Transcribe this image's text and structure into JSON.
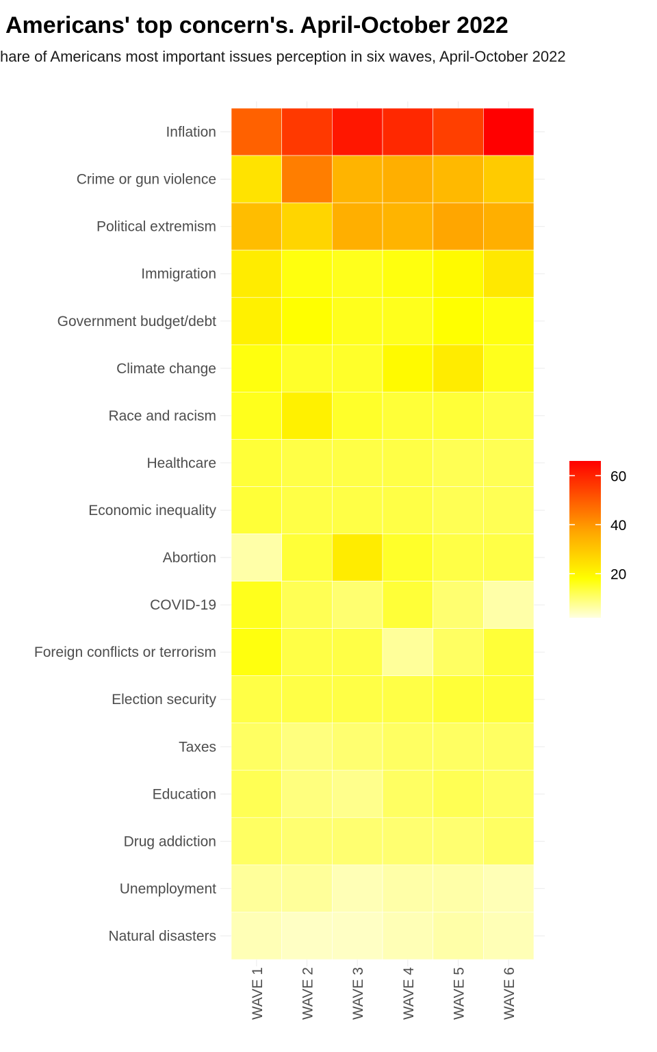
{
  "title": "Americans' top concern's. April-October 2022",
  "subtitle": "hare of Americans most important issues perception in six waves, April-October 2022",
  "chart_data": {
    "type": "heatmap",
    "x": [
      "WAVE 1",
      "WAVE 2",
      "WAVE 3",
      "WAVE 4",
      "WAVE 5",
      "WAVE 6"
    ],
    "y": [
      "Inflation",
      "Crime or gun violence",
      "Political extremism",
      "Immigration",
      "Government budget/debt",
      "Climate change",
      "Race and racism",
      "Healthcare",
      "Economic inequality",
      "Abortion",
      "COVID-19",
      "Foreign conflicts or terrorism",
      "Election security",
      "Taxes",
      "Education",
      "Drug addiction",
      "Unemployment",
      "Natural disasters"
    ],
    "values": [
      [
        49,
        56,
        62,
        59,
        55,
        66
      ],
      [
        24,
        44,
        34,
        35,
        33,
        29
      ],
      [
        32,
        27,
        35,
        34,
        37,
        35
      ],
      [
        22,
        17,
        16,
        17,
        19,
        23
      ],
      [
        21,
        18,
        16,
        16,
        18,
        17
      ],
      [
        17,
        15,
        15,
        19,
        22,
        16
      ],
      [
        16,
        21,
        15,
        14,
        14,
        13
      ],
      [
        14,
        13,
        13,
        13,
        12,
        12
      ],
      [
        14,
        13,
        13,
        13,
        12,
        12
      ],
      [
        6,
        14,
        22,
        15,
        13,
        13
      ],
      [
        16,
        12,
        10,
        14,
        10,
        6
      ],
      [
        17,
        13,
        13,
        7,
        11,
        14
      ],
      [
        13,
        13,
        13,
        13,
        14,
        14
      ],
      [
        11,
        9,
        10,
        11,
        11,
        11
      ],
      [
        12,
        9,
        8,
        11,
        12,
        11
      ],
      [
        11,
        10,
        10,
        10,
        10,
        11
      ],
      [
        7,
        7,
        5,
        6,
        6,
        5
      ],
      [
        5,
        4,
        4,
        5,
        6,
        5
      ]
    ],
    "colorbar": {
      "ticks": [
        20,
        40,
        60
      ],
      "min": 2,
      "max": 66,
      "colors": [
        "#ffffe0",
        "#ffff00",
        "#ffa500",
        "#ff0000"
      ]
    },
    "xlabel": "",
    "ylabel": "",
    "legend_position": "right",
    "grid": true
  }
}
